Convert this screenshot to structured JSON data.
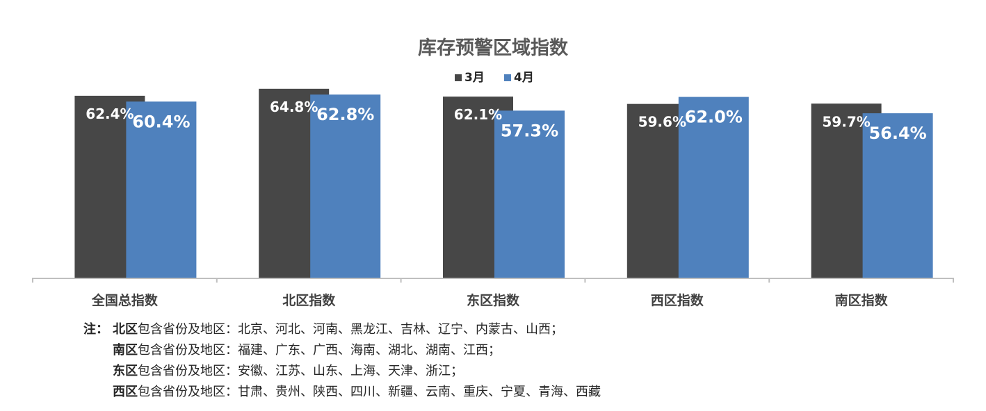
{
  "chart_data": {
    "type": "bar",
    "title": "库存预警区域指数",
    "categories": [
      "全国总指数",
      "北区指数",
      "东区指数",
      "西区指数",
      "南区指数"
    ],
    "series": [
      {
        "name": "3月",
        "color": "#474747",
        "values": [
          62.4,
          64.8,
          62.1,
          59.6,
          59.7
        ],
        "labels": [
          "62.4%",
          "64.8%",
          "62.1%",
          "59.6%",
          "59.7%"
        ]
      },
      {
        "name": "4月",
        "color": "#4f81bd",
        "values": [
          60.4,
          62.8,
          57.3,
          62.0,
          56.4
        ],
        "labels": [
          "60.4%",
          "62.8%",
          "57.3%",
          "62.0%",
          "56.4%"
        ]
      }
    ],
    "ylim": [
      0,
      70
    ],
    "grid": false,
    "legend_position": "top-center"
  },
  "notes": {
    "prefix": "注：",
    "lines": [
      {
        "region": "北区",
        "text": "包含省份及地区：北京、河北、河南、黑龙江、吉林、辽宁、内蒙古、山西；"
      },
      {
        "region": "南区",
        "text": "包含省份及地区：福建、广东、广西、海南、湖北、湖南、江西；"
      },
      {
        "region": "东区",
        "text": "包含省份及地区：安徽、江苏、山东、上海、天津、浙江；"
      },
      {
        "region": "西区",
        "text": "包含省份及地区：甘肃、贵州、陕西、四川、新疆、云南、重庆、宁夏、青海、西藏"
      }
    ]
  }
}
